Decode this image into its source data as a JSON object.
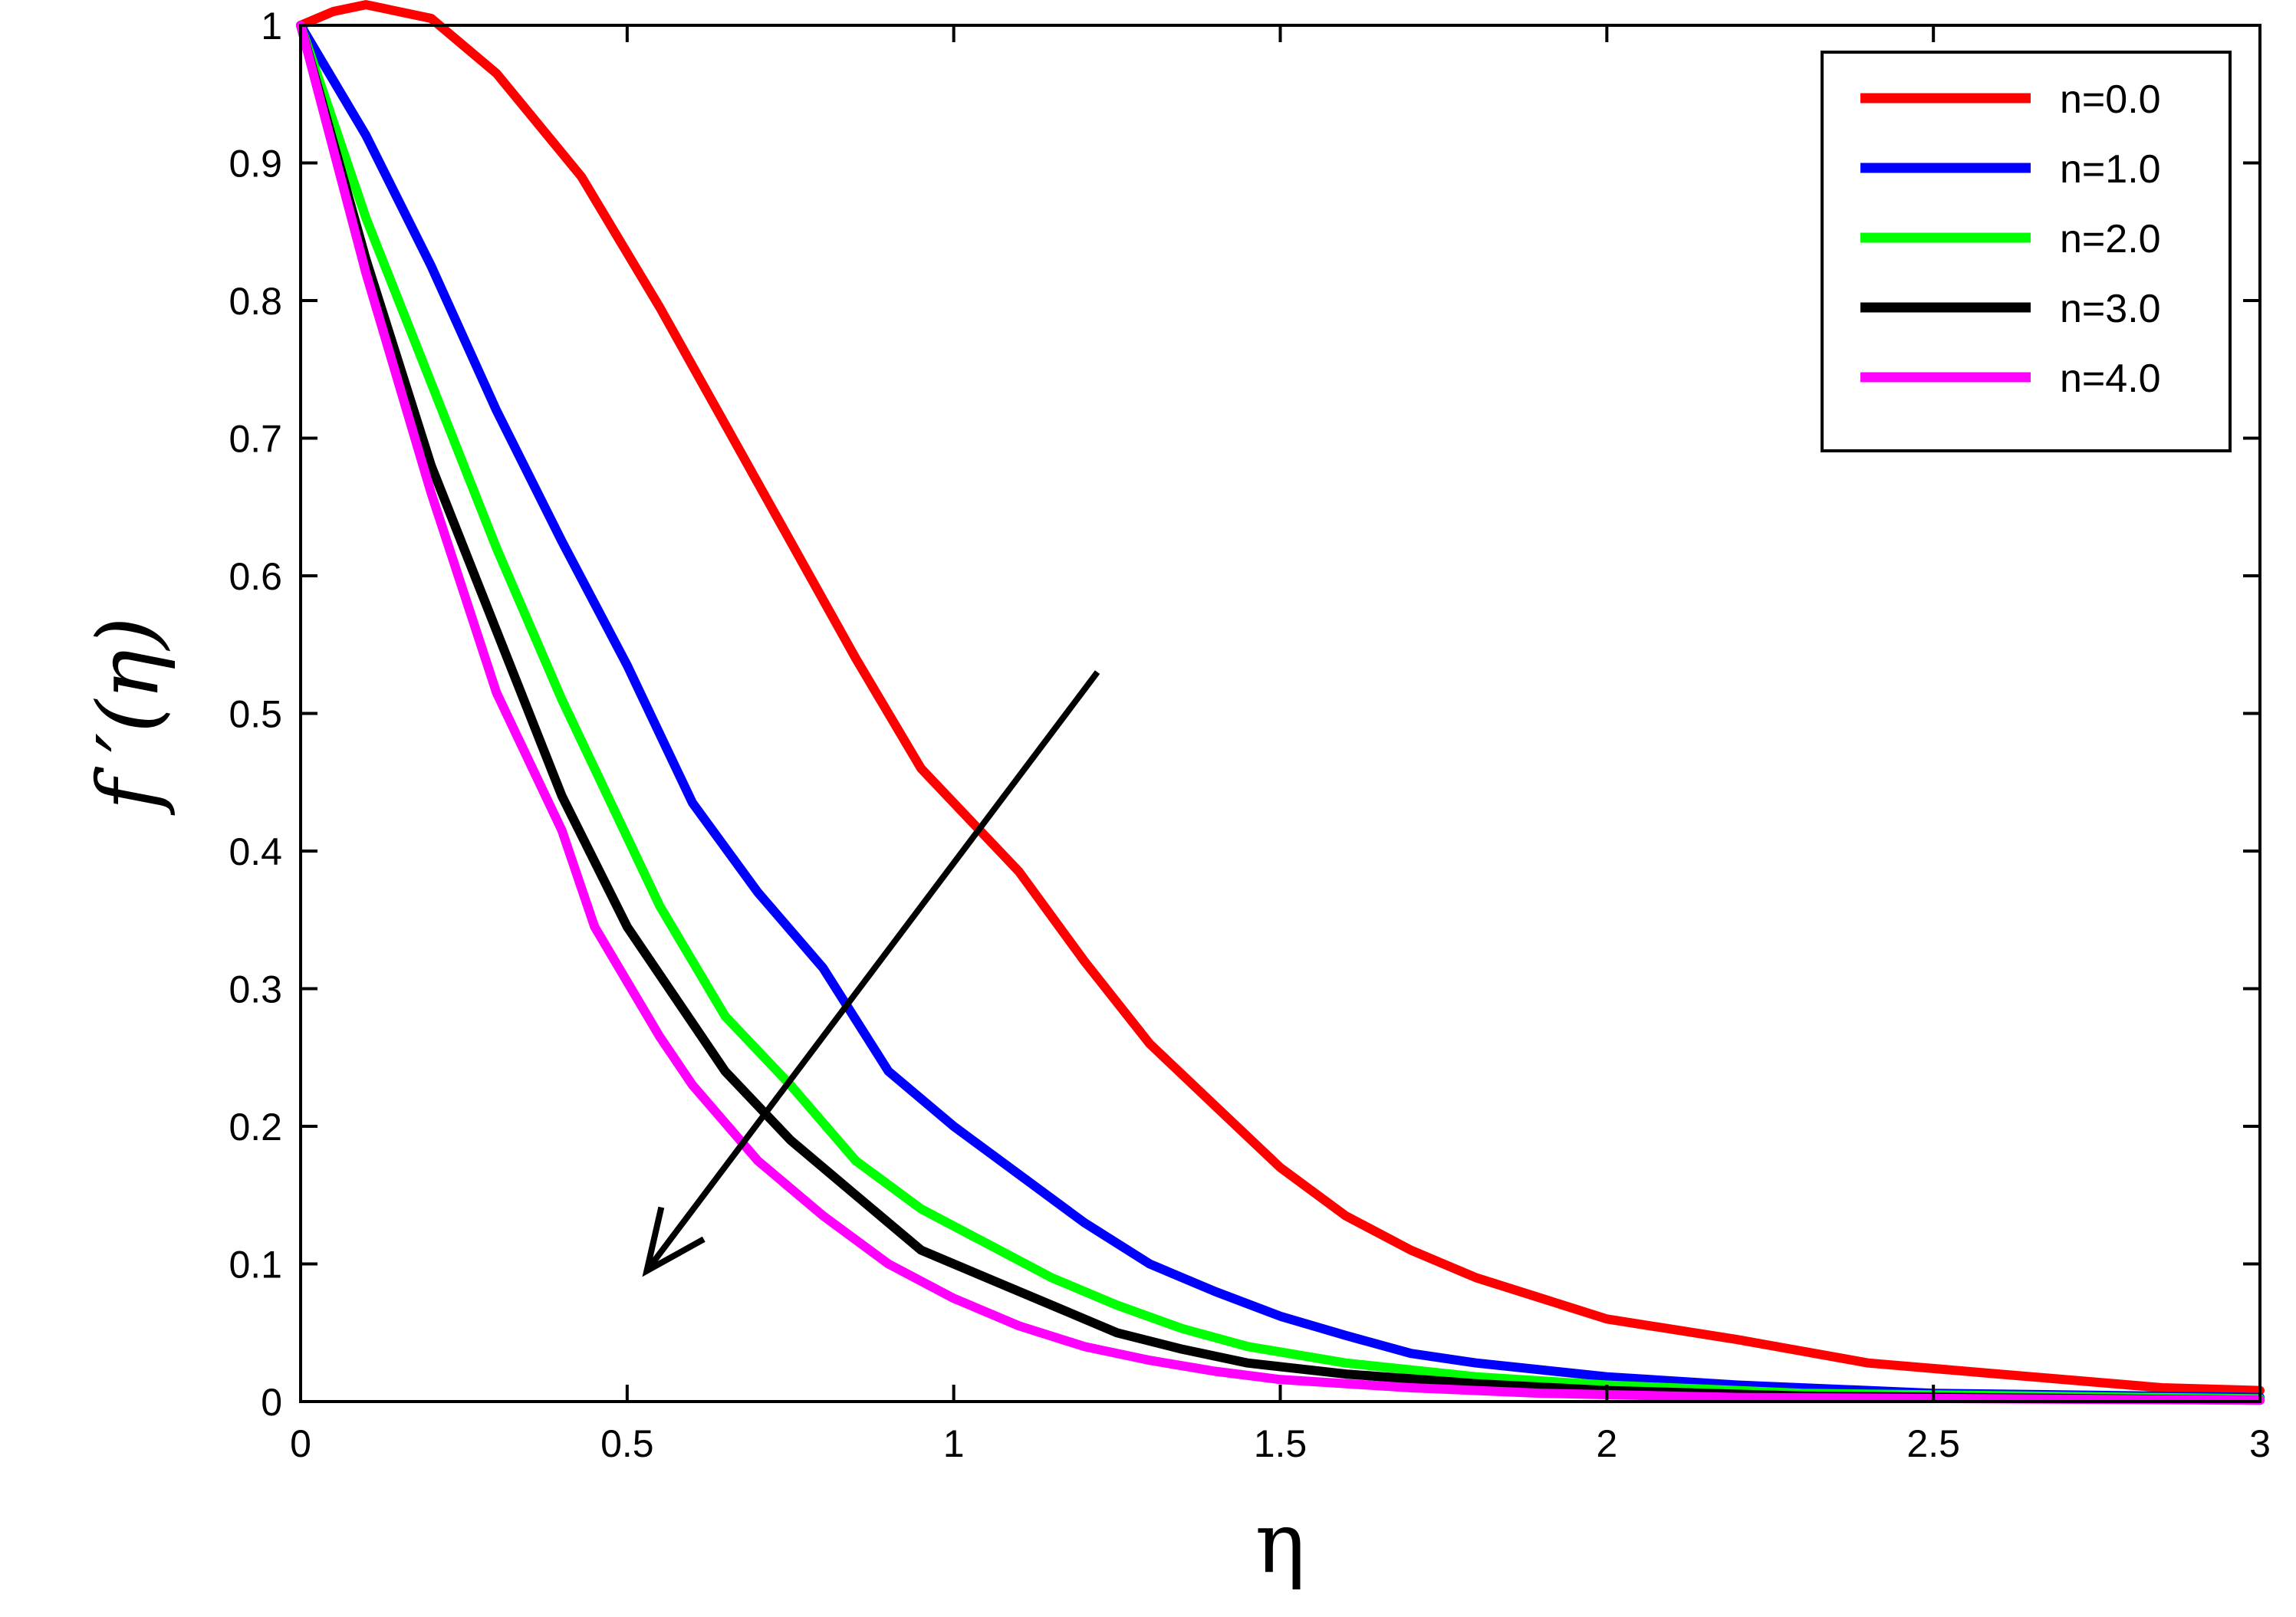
{
  "chart_data": {
    "type": "line",
    "title": "",
    "xlabel": "η",
    "ylabel": "f ′(η)",
    "xlim": [
      0,
      3
    ],
    "ylim": [
      0,
      1
    ],
    "xticks": [
      "0",
      "0.5",
      "1",
      "1.5",
      "2",
      "2.5",
      "3"
    ],
    "yticks": [
      "0",
      "0.1",
      "0.2",
      "0.3",
      "0.4",
      "0.5",
      "0.6",
      "0.7",
      "0.8",
      "0.9",
      "1"
    ],
    "grid": false,
    "legend_position": "top-right",
    "annotation": {
      "type": "arrow",
      "from": [
        1.22,
        0.53
      ],
      "to": [
        0.53,
        0.095
      ]
    },
    "series": [
      {
        "name": "n=0.0",
        "color": "#ff0000",
        "points": [
          [
            0,
            1.0
          ],
          [
            0.05,
            1.01
          ],
          [
            0.1,
            1.015
          ],
          [
            0.2,
            1.005
          ],
          [
            0.3,
            0.965
          ],
          [
            0.43,
            0.89
          ],
          [
            0.55,
            0.795
          ],
          [
            0.65,
            0.71
          ],
          [
            0.75,
            0.625
          ],
          [
            0.85,
            0.54
          ],
          [
            0.95,
            0.46
          ],
          [
            1.1,
            0.385
          ],
          [
            1.2,
            0.32
          ],
          [
            1.3,
            0.26
          ],
          [
            1.4,
            0.215
          ],
          [
            1.5,
            0.17
          ],
          [
            1.6,
            0.135
          ],
          [
            1.7,
            0.11
          ],
          [
            1.8,
            0.09
          ],
          [
            1.9,
            0.075
          ],
          [
            2.0,
            0.06
          ],
          [
            2.2,
            0.045
          ],
          [
            2.4,
            0.028
          ],
          [
            2.6,
            0.02
          ],
          [
            2.85,
            0.01
          ],
          [
            3.0,
            0.008
          ]
        ]
      },
      {
        "name": "n=1.0",
        "color": "#0000ff",
        "points": [
          [
            0,
            1.0
          ],
          [
            0.1,
            0.92
          ],
          [
            0.2,
            0.825
          ],
          [
            0.3,
            0.72
          ],
          [
            0.4,
            0.625
          ],
          [
            0.5,
            0.535
          ],
          [
            0.56,
            0.475
          ],
          [
            0.6,
            0.435
          ],
          [
            0.7,
            0.37
          ],
          [
            0.8,
            0.315
          ],
          [
            0.9,
            0.24
          ],
          [
            1.0,
            0.2
          ],
          [
            1.1,
            0.165
          ],
          [
            1.2,
            0.13
          ],
          [
            1.3,
            0.1
          ],
          [
            1.4,
            0.08
          ],
          [
            1.5,
            0.062
          ],
          [
            1.6,
            0.048
          ],
          [
            1.7,
            0.035
          ],
          [
            1.8,
            0.028
          ],
          [
            2.0,
            0.018
          ],
          [
            2.2,
            0.012
          ],
          [
            2.5,
            0.006
          ],
          [
            3.0,
            0.003
          ]
        ]
      },
      {
        "name": "n=2.0",
        "color": "#00ff00",
        "points": [
          [
            0,
            1.0
          ],
          [
            0.1,
            0.86
          ],
          [
            0.2,
            0.74
          ],
          [
            0.3,
            0.62
          ],
          [
            0.4,
            0.51
          ],
          [
            0.45,
            0.46
          ],
          [
            0.55,
            0.36
          ],
          [
            0.65,
            0.28
          ],
          [
            0.75,
            0.23
          ],
          [
            0.85,
            0.175
          ],
          [
            0.95,
            0.14
          ],
          [
            1.05,
            0.115
          ],
          [
            1.15,
            0.09
          ],
          [
            1.25,
            0.07
          ],
          [
            1.35,
            0.053
          ],
          [
            1.45,
            0.04
          ],
          [
            1.6,
            0.028
          ],
          [
            1.8,
            0.018
          ],
          [
            2.0,
            0.012
          ],
          [
            2.3,
            0.006
          ],
          [
            3.0,
            0.002
          ]
        ]
      },
      {
        "name": "n=3.0",
        "color": "#000000",
        "points": [
          [
            0,
            1.0
          ],
          [
            0.1,
            0.83
          ],
          [
            0.2,
            0.68
          ],
          [
            0.3,
            0.56
          ],
          [
            0.4,
            0.44
          ],
          [
            0.5,
            0.345
          ],
          [
            0.55,
            0.31
          ],
          [
            0.65,
            0.24
          ],
          [
            0.75,
            0.19
          ],
          [
            0.85,
            0.15
          ],
          [
            0.95,
            0.11
          ],
          [
            1.05,
            0.09
          ],
          [
            1.15,
            0.07
          ],
          [
            1.25,
            0.05
          ],
          [
            1.35,
            0.038
          ],
          [
            1.45,
            0.028
          ],
          [
            1.6,
            0.02
          ],
          [
            1.8,
            0.013
          ],
          [
            2.0,
            0.008
          ],
          [
            2.3,
            0.004
          ],
          [
            3.0,
            0.001
          ]
        ]
      },
      {
        "name": "n=4.0",
        "color": "#ff00ff",
        "points": [
          [
            0,
            1.0
          ],
          [
            0.1,
            0.82
          ],
          [
            0.2,
            0.66
          ],
          [
            0.3,
            0.515
          ],
          [
            0.4,
            0.415
          ],
          [
            0.45,
            0.345
          ],
          [
            0.55,
            0.265
          ],
          [
            0.6,
            0.23
          ],
          [
            0.7,
            0.175
          ],
          [
            0.8,
            0.135
          ],
          [
            0.9,
            0.1
          ],
          [
            1.0,
            0.075
          ],
          [
            1.1,
            0.055
          ],
          [
            1.2,
            0.04
          ],
          [
            1.3,
            0.03
          ],
          [
            1.4,
            0.022
          ],
          [
            1.5,
            0.016
          ],
          [
            1.7,
            0.01
          ],
          [
            1.9,
            0.006
          ],
          [
            2.2,
            0.003
          ],
          [
            3.0,
            0.001
          ]
        ]
      }
    ]
  }
}
